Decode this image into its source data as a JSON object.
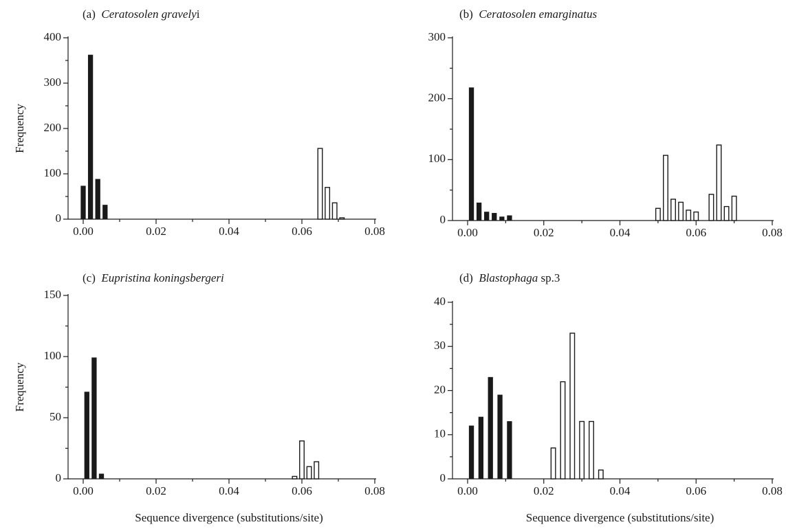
{
  "chart_data": [
    {
      "panel": "a",
      "type": "bar",
      "title_prefix": "(a)",
      "title_species": "Ceratosolen gravely",
      "title_suffix": "i",
      "xlabel": "",
      "ylabel": "Frequency",
      "xlim": [
        0,
        0.08
      ],
      "ylim": [
        0,
        400
      ],
      "xticks": [
        "0.00",
        "0.02",
        "0.04",
        "0.06",
        "0.08"
      ],
      "yticks": [
        "0",
        "100",
        "200",
        "300",
        "400"
      ],
      "series": [
        {
          "fill": "filled",
          "color": "#1a1a1a",
          "x": [
            0.0,
            0.002,
            0.004,
            0.006
          ],
          "values": [
            73,
            362,
            88,
            31
          ]
        },
        {
          "fill": "open",
          "color": "#ffffff",
          "x": [
            0.065,
            0.067,
            0.069,
            0.071
          ],
          "values": [
            156,
            70,
            36,
            3
          ]
        }
      ]
    },
    {
      "panel": "b",
      "type": "bar",
      "title_prefix": "(b)",
      "title_species": "Ceratosolen emarginatus",
      "title_suffix": "",
      "xlabel": "",
      "ylabel": "",
      "xlim": [
        0,
        0.08
      ],
      "ylim": [
        0,
        300
      ],
      "xticks": [
        "0.00",
        "0.02",
        "0.04",
        "0.06",
        "0.08"
      ],
      "yticks": [
        "0",
        "100",
        "200",
        "300"
      ],
      "series": [
        {
          "fill": "filled",
          "color": "#1a1a1a",
          "x": [
            0.001,
            0.003,
            0.005,
            0.007,
            0.009,
            0.011
          ],
          "values": [
            218,
            29,
            14,
            12,
            6,
            8
          ]
        },
        {
          "fill": "open",
          "color": "#ffffff",
          "x": [
            0.05,
            0.052,
            0.054,
            0.056,
            0.058,
            0.06,
            0.064,
            0.066,
            0.068,
            0.07
          ],
          "values": [
            20,
            107,
            35,
            30,
            17,
            14,
            43,
            124,
            23,
            40
          ]
        }
      ]
    },
    {
      "panel": "c",
      "type": "bar",
      "title_prefix": "(c)",
      "title_species": "Eupristina koningsbergeri",
      "title_suffix": "",
      "xlabel": "Sequence divergence (substitutions/site)",
      "ylabel": "Frequency",
      "xlim": [
        0,
        0.08
      ],
      "ylim": [
        0,
        150
      ],
      "xticks": [
        "0.00",
        "0.02",
        "0.04",
        "0.06",
        "0.08"
      ],
      "yticks": [
        "0",
        "50",
        "100",
        "150"
      ],
      "series": [
        {
          "fill": "filled",
          "color": "#1a1a1a",
          "x": [
            0.001,
            0.003,
            0.005
          ],
          "values": [
            71,
            99,
            4
          ]
        },
        {
          "fill": "open",
          "color": "#ffffff",
          "x": [
            0.058,
            0.06,
            0.062,
            0.064
          ],
          "values": [
            2,
            31,
            10,
            14
          ]
        }
      ]
    },
    {
      "panel": "d",
      "type": "bar",
      "title_prefix": "(d)",
      "title_species": "Blastophaga",
      "title_suffix": "sp.3",
      "xlabel": "Sequence divergence (substitutions/site)",
      "ylabel": "",
      "xlim": [
        0,
        0.08
      ],
      "ylim": [
        0,
        40
      ],
      "xticks": [
        "0.00",
        "0.02",
        "0.04",
        "0.06",
        "0.08"
      ],
      "yticks": [
        "0",
        "10",
        "20",
        "30",
        "40"
      ],
      "series": [
        {
          "fill": "filled",
          "color": "#1a1a1a",
          "x": [
            0.001,
            0.0035,
            0.006,
            0.0085,
            0.011
          ],
          "values": [
            12,
            14,
            23,
            19,
            13
          ]
        },
        {
          "fill": "open",
          "color": "#ffffff",
          "x": [
            0.0225,
            0.025,
            0.0275,
            0.03,
            0.0325,
            0.035
          ],
          "values": [
            7,
            22,
            33,
            13,
            13,
            2
          ]
        }
      ]
    }
  ]
}
